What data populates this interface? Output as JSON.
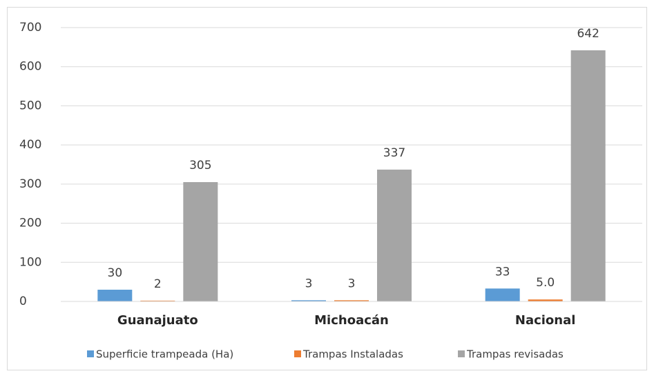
{
  "chart_data": {
    "type": "bar",
    "categories": [
      "Guanajuato",
      "Michoacán",
      "Nacional"
    ],
    "series": [
      {
        "name": "Superficie trampeada (Ha)",
        "color": "#5b9bd5",
        "values": [
          30,
          3,
          33
        ]
      },
      {
        "name": "Trampas Instaladas",
        "color": "#ed7d31",
        "values": [
          2,
          3,
          5
        ],
        "value_labels": [
          "2",
          "3",
          "5.0"
        ]
      },
      {
        "name": "Trampas revisadas",
        "color": "#a5a5a5",
        "values": [
          305,
          337,
          642
        ]
      }
    ],
    "ylim": [
      0,
      700
    ],
    "yticks": [
      0,
      100,
      200,
      300,
      400,
      500,
      600,
      700
    ],
    "grid": true,
    "legend": "bottom"
  }
}
